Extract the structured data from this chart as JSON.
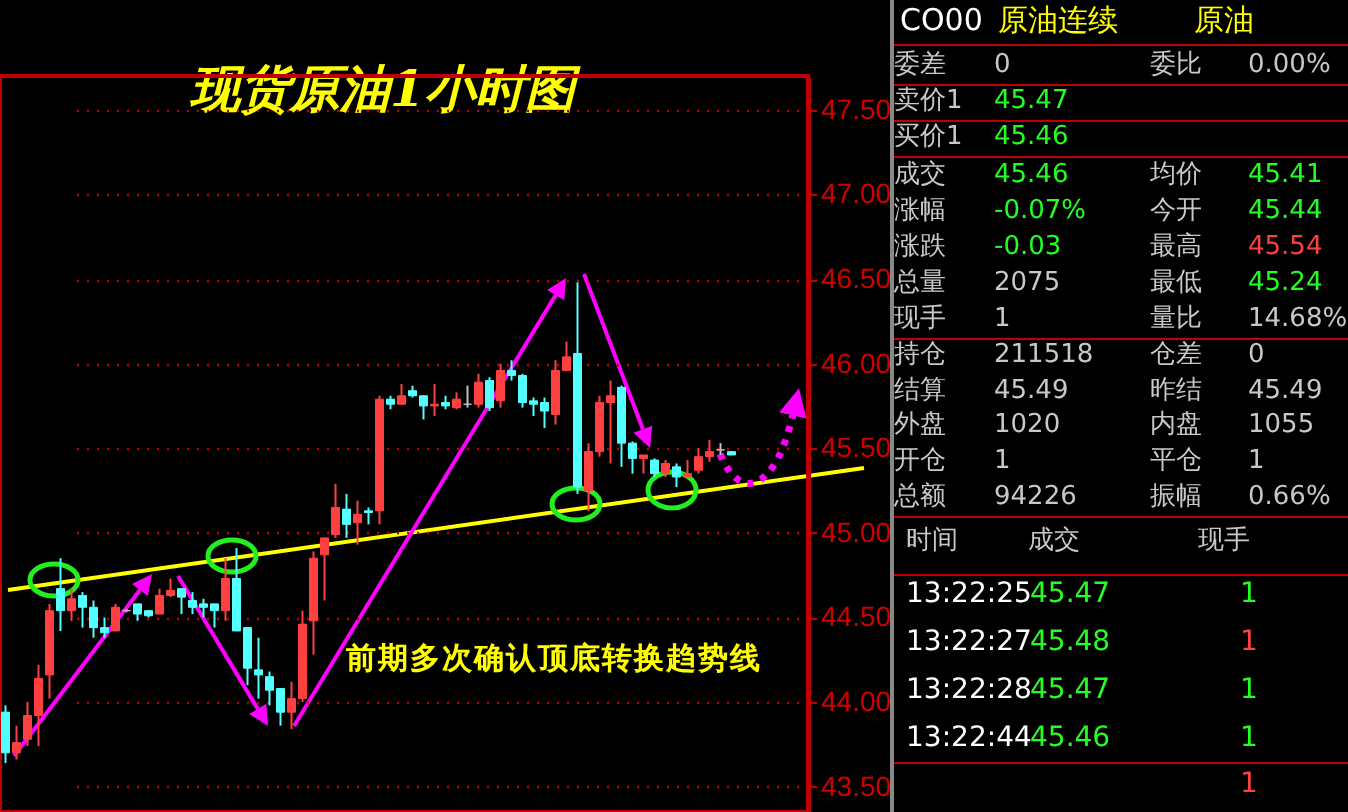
{
  "chart_data": [
    {
      "type": "candlestick",
      "title": "现货原油1小时图",
      "annotations": [
        "前期多次确认顶底转换趋势线"
      ],
      "categories": [
        null,
        null,
        null,
        null,
        null,
        null,
        null,
        null,
        null,
        null,
        null,
        null,
        null,
        null,
        null,
        null,
        null,
        null,
        null,
        null,
        null,
        null,
        null,
        null,
        null,
        null,
        null,
        null,
        null,
        null,
        null,
        null,
        null,
        null,
        null,
        null,
        null,
        null,
        null,
        null,
        null,
        null,
        null,
        null,
        null,
        null,
        null,
        null,
        null,
        null,
        null,
        null,
        null,
        null,
        null,
        null,
        null,
        null,
        null,
        null,
        null,
        null,
        null,
        null,
        null,
        null,
        null
      ],
      "ohlc": [
        [
          43.94,
          43.98,
          43.64,
          43.7
        ],
        [
          43.7,
          43.86,
          43.66,
          43.76
        ],
        [
          43.78,
          44.0,
          43.74,
          43.92
        ],
        [
          43.92,
          44.22,
          43.74,
          44.14
        ],
        [
          44.16,
          44.58,
          44.02,
          44.54
        ],
        [
          44.67,
          44.85,
          44.42,
          44.54
        ],
        [
          44.54,
          44.67,
          44.48,
          44.61
        ],
        [
          44.63,
          44.65,
          44.44,
          44.56
        ],
        [
          44.56,
          44.6,
          44.38,
          44.44
        ],
        [
          44.44,
          44.5,
          44.38,
          44.41
        ],
        [
          44.42,
          44.58,
          44.42,
          44.56
        ],
        [
          44.54,
          44.55,
          44.53,
          44.54
        ],
        [
          44.58,
          44.58,
          44.48,
          44.52
        ],
        [
          44.54,
          44.54,
          44.5,
          44.51
        ],
        [
          44.52,
          44.67,
          44.52,
          44.63
        ],
        [
          44.63,
          44.73,
          44.62,
          44.66
        ],
        [
          44.67,
          44.67,
          44.52,
          44.62
        ],
        [
          44.6,
          44.65,
          44.52,
          44.56
        ],
        [
          44.58,
          44.61,
          44.5,
          44.56
        ],
        [
          44.58,
          44.58,
          44.44,
          44.54
        ],
        [
          44.54,
          44.85,
          44.48,
          44.73
        ],
        [
          44.73,
          44.91,
          44.42,
          44.42
        ],
        [
          44.44,
          44.44,
          44.1,
          44.2
        ],
        [
          44.19,
          44.38,
          44.02,
          44.16
        ],
        [
          44.15,
          44.18,
          43.98,
          44.07
        ],
        [
          44.08,
          44.08,
          43.86,
          43.94
        ],
        [
          43.94,
          44.12,
          43.84,
          44.02
        ],
        [
          44.02,
          44.54,
          44.0,
          44.46
        ],
        [
          44.48,
          44.89,
          44.28,
          44.85
        ],
        [
          44.87,
          44.97,
          44.6,
          44.97
        ],
        [
          44.99,
          45.29,
          44.97,
          45.15
        ],
        [
          45.14,
          45.23,
          44.97,
          45.05
        ],
        [
          45.06,
          45.19,
          44.93,
          45.11
        ],
        [
          45.13,
          45.15,
          45.05,
          45.12
        ],
        [
          45.13,
          45.81,
          45.05,
          45.79
        ],
        [
          45.79,
          45.81,
          45.73,
          45.76
        ],
        [
          45.76,
          45.88,
          45.76,
          45.81
        ],
        [
          45.84,
          45.87,
          45.8,
          45.81
        ],
        [
          45.81,
          45.81,
          45.67,
          45.75
        ],
        [
          45.75,
          45.88,
          45.69,
          45.76
        ],
        [
          45.77,
          45.81,
          45.73,
          45.75
        ],
        [
          45.74,
          45.83,
          45.73,
          45.79
        ],
        [
          45.76,
          45.87,
          45.74,
          45.76
        ],
        [
          45.76,
          45.94,
          45.74,
          45.89
        ],
        [
          45.9,
          45.92,
          45.72,
          45.74
        ],
        [
          45.78,
          46.0,
          45.74,
          45.96
        ],
        [
          45.96,
          46.02,
          45.9,
          45.93
        ],
        [
          45.93,
          45.94,
          45.74,
          45.77
        ],
        [
          45.78,
          45.8,
          45.69,
          45.76
        ],
        [
          45.77,
          45.8,
          45.62,
          45.72
        ],
        [
          45.7,
          46.02,
          45.64,
          45.96
        ],
        [
          45.96,
          46.13,
          45.96,
          46.04
        ],
        [
          46.06,
          46.48,
          45.23,
          45.27
        ],
        [
          45.25,
          45.53,
          45.13,
          45.48
        ],
        [
          45.48,
          45.81,
          45.45,
          45.77
        ],
        [
          45.77,
          45.9,
          45.41,
          45.81
        ],
        [
          45.86,
          45.87,
          45.39,
          45.53
        ],
        [
          45.53,
          45.54,
          45.35,
          45.44
        ],
        [
          45.44,
          45.46,
          45.35,
          45.46
        ],
        [
          45.43,
          45.44,
          45.33,
          45.35
        ],
        [
          45.35,
          45.43,
          45.33,
          45.41
        ],
        [
          45.39,
          45.41,
          45.27,
          45.33
        ],
        [
          45.33,
          45.43,
          45.33,
          45.35
        ],
        [
          45.37,
          45.5,
          45.35,
          45.45
        ],
        [
          45.45,
          45.55,
          45.42,
          45.48
        ],
        [
          45.49,
          45.53,
          45.46,
          45.49
        ],
        [
          45.48,
          45.48,
          45.46,
          45.46
        ]
      ],
      "ylim": [
        43.35,
        47.7
      ],
      "yticks": [
        {
          "value": 43.5,
          "label": "43.50"
        },
        {
          "value": 44,
          "label": "44.00"
        },
        {
          "value": 44.5,
          "label": "44.50"
        },
        {
          "value": 45,
          "label": "45.00"
        },
        {
          "value": 45.5,
          "label": "45.50"
        },
        {
          "value": 46,
          "label": "46.00"
        },
        {
          "value": 46.5,
          "label": "46.50"
        },
        {
          "value": 47,
          "label": "47.00"
        },
        {
          "value": 47.5,
          "label": "47.50"
        }
      ],
      "grid": "y",
      "tick_labels": "y"
    },
    {
      "type": "other",
      "annotations": [
        "CO00",
        "原油连续",
        "原油",
        "委差",
        "0",
        "委比",
        "0.00%",
        "卖价1",
        "45.47",
        "买价1",
        "45.46",
        "成交",
        "45.46",
        "均价",
        "45.41",
        "涨幅",
        "-0.07%",
        "今开",
        "45.44",
        "涨跌",
        "-0.03",
        "最高",
        "45.54",
        "总量",
        "2075",
        "最低",
        "45.24",
        "现手",
        "1",
        "量比",
        "14.68%",
        "持仓",
        "211518",
        "仓差",
        "0",
        "结算",
        "45.49",
        "昨结",
        "45.49",
        "外盘",
        "1020",
        "内盘",
        "1055",
        "开仓",
        "1",
        "平仓",
        "1",
        "总额",
        "94226",
        "振幅",
        "0.66%",
        "时间",
        "成交",
        "现手",
        "13:22:25",
        "45.47",
        "1",
        "13:22:27",
        "45.48",
        "1",
        "13:22:28",
        "45.47",
        "1",
        "13:22:44",
        "45.46",
        "1",
        "1"
      ]
    }
  ]
}
